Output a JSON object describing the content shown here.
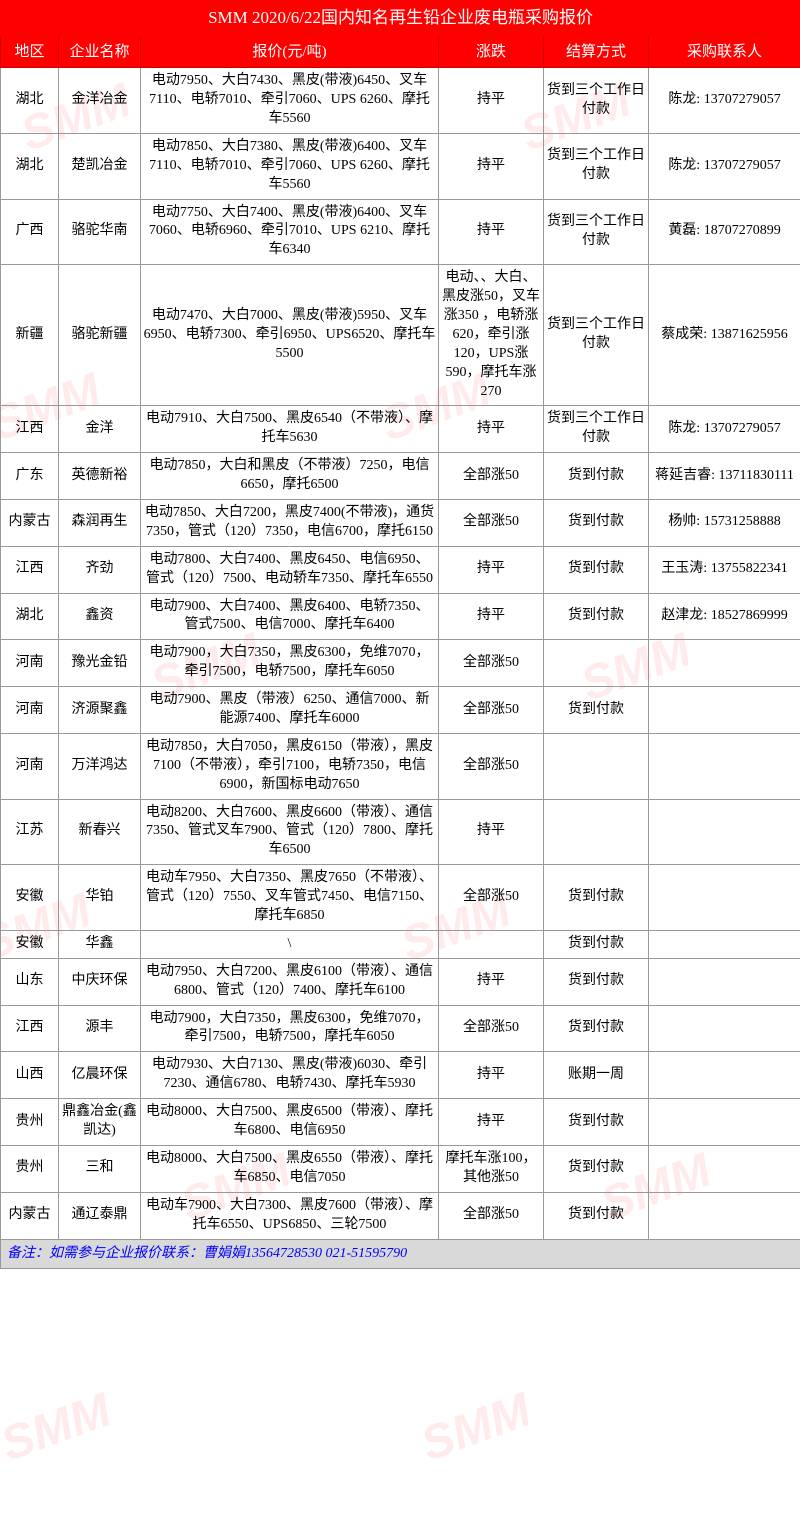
{
  "title": "SMM 2020/6/22国内知名再生铅企业废电瓶采购报价",
  "headers": {
    "region": "地区",
    "company": "企业名称",
    "quote": "报价(元/吨)",
    "change": "涨跌",
    "payment": "结算方式",
    "contact": "采购联系人"
  },
  "rows": [
    {
      "region": "湖北",
      "company": "金洋冶金",
      "quote": "电动7950、大白7430、黑皮(带液)6450、叉车7110、电轿7010、牵引7060、UPS 6260、摩托车5560",
      "change": "持平",
      "payment": "货到三个工作日付款",
      "contact": "陈龙: 13707279057"
    },
    {
      "region": "湖北",
      "company": "楚凯冶金",
      "quote": "电动7850、大白7380、黑皮(带液)6400、叉车7110、电轿7010、牵引7060、UPS 6260、摩托车5560",
      "change": "持平",
      "payment": "货到三个工作日付款",
      "contact": "陈龙: 13707279057"
    },
    {
      "region": "广西",
      "company": "骆驼华南",
      "quote": "电动7750、大白7400、黑皮(带液)6400、叉车7060、电轿6960、牵引7010、UPS 6210、摩托车6340",
      "change": "持平",
      "payment": "货到三个工作日付款",
      "contact": "黄磊: 18707270899"
    },
    {
      "region": "新疆",
      "company": "骆驼新疆",
      "quote": "电动7470、大白7000、黑皮(带液)5950、叉车6950、电轿7300、牵引6950、UPS6520、摩托车5500",
      "change": "电动、、大白、黑皮涨50，叉车涨350 ，电轿涨620，牵引涨120，UPS涨590，摩托车涨270",
      "payment": "货到三个工作日付款",
      "contact": "蔡成荣: 13871625956"
    },
    {
      "region": "江西",
      "company": "金洋",
      "quote": "电动7910、大白7500、黑皮6540（不带液）、摩托车5630",
      "change": "持平",
      "payment": "货到三个工作日付款",
      "contact": "陈龙: 13707279057"
    },
    {
      "region": "广东",
      "company": "英德新裕",
      "quote": "电动7850，大白和黑皮（不带液）7250，电信6650，摩托6500",
      "change": "全部涨50",
      "payment": "货到付款",
      "contact": "蒋延吉睿: 13711830111"
    },
    {
      "region": "内蒙古",
      "company": "森润再生",
      "quote": "电动7850、大白7200，黑皮7400(不带液)，通货7350，管式（120）7350，电信6700，摩托6150",
      "change": "全部涨50",
      "payment": "货到付款",
      "contact": "杨帅: 15731258888"
    },
    {
      "region": "江西",
      "company": "齐劲",
      "quote": "电动7800、大白7400、黑皮6450、电信6950、管式（120）7500、电动轿车7350、摩托车6550",
      "change": "持平",
      "payment": "货到付款",
      "contact": "王玉涛: 13755822341"
    },
    {
      "region": "湖北",
      "company": "鑫资",
      "quote": "电动7900、大白7400、黑皮6400、电轿7350、管式7500、电信7000、摩托车6400",
      "change": "持平",
      "payment": "货到付款",
      "contact": "赵津龙: 18527869999"
    },
    {
      "region": "河南",
      "company": "豫光金铅",
      "quote": "电动7900，大白7350，黑皮6300，免维7070，牵引7500，电轿7500，摩托车6050",
      "change": "全部涨50",
      "payment": "",
      "contact": ""
    },
    {
      "region": "河南",
      "company": "济源聚鑫",
      "quote": "电动7900、黑皮（带液）6250、通信7000、新能源7400、摩托车6000",
      "change": "全部涨50",
      "payment": "货到付款",
      "contact": ""
    },
    {
      "region": "河南",
      "company": "万洋鸿达",
      "quote": "电动7850，大白7050，黑皮6150（带液），黑皮7100（不带液），牵引7100，电轿7350，电信6900，新国标电动7650",
      "change": "全部涨50",
      "payment": "",
      "contact": ""
    },
    {
      "region": "江苏",
      "company": "新春兴",
      "quote": "电动8200、大白7600、黑皮6600（带液）、通信7350、管式叉车7900、管式（120）7800、摩托车6500",
      "change": "持平",
      "payment": "",
      "contact": ""
    },
    {
      "region": "安徽",
      "company": "华铂",
      "quote": "电动车7950、大白7350、黑皮7650（不带液）、管式（120）7550、叉车管式7450、电信7150、摩托车6850",
      "change": "全部涨50",
      "payment": "货到付款",
      "contact": ""
    },
    {
      "region": "安徽",
      "company": "华鑫",
      "quote": "\\",
      "change": "",
      "payment": "货到付款",
      "contact": ""
    },
    {
      "region": "山东",
      "company": "中庆环保",
      "quote": "电动7950、大白7200、黑皮6100（带液）、通信6800、管式（120）7400、摩托车6100",
      "change": "持平",
      "payment": "货到付款",
      "contact": ""
    },
    {
      "region": "江西",
      "company": "源丰",
      "quote": "电动7900，大白7350，黑皮6300，免维7070，牵引7500，电轿7500，摩托车6050",
      "change": "全部涨50",
      "payment": "货到付款",
      "contact": ""
    },
    {
      "region": "山西",
      "company": "亿晨环保",
      "quote": "电动7930、大白7130、黑皮(带液)6030、牵引7230、通信6780、电轿7430、摩托车5930",
      "change": "持平",
      "payment": "账期一周",
      "contact": ""
    },
    {
      "region": "贵州",
      "company": "鼎鑫冶金(鑫凯达)",
      "quote": "电动8000、大白7500、黑皮6500（带液）、摩托车6800、电信6950",
      "change": "持平",
      "payment": "货到付款",
      "contact": ""
    },
    {
      "region": "贵州",
      "company": "三和",
      "quote": "电动8000、大白7500、黑皮6550（带液）、摩托车6850、电信7050",
      "change": "摩托车涨100，其他涨50",
      "payment": "货到付款",
      "contact": ""
    },
    {
      "region": "内蒙古",
      "company": "通辽泰鼎",
      "quote": "电动车7900、大白7300、黑皮7600（带液）、摩托车6550、UPS6850、三轮7500",
      "change": "全部涨50",
      "payment": "货到付款",
      "contact": ""
    }
  ],
  "footer": "备注：如需参与企业报价联系：曹娟娟13564728530   021-51595790",
  "watermark_text": "SMM",
  "col_widths": {
    "region": 58,
    "company": 82,
    "quote": 298,
    "change": 105,
    "payment": 105,
    "contact": 152
  },
  "colors": {
    "header_bg": "#ff0000",
    "header_text": "#ffffff",
    "border": "#999999",
    "footer_bg": "#d9d9d9",
    "footer_text": "#0000ff",
    "watermark": "rgba(255,0,0,0.08)"
  }
}
